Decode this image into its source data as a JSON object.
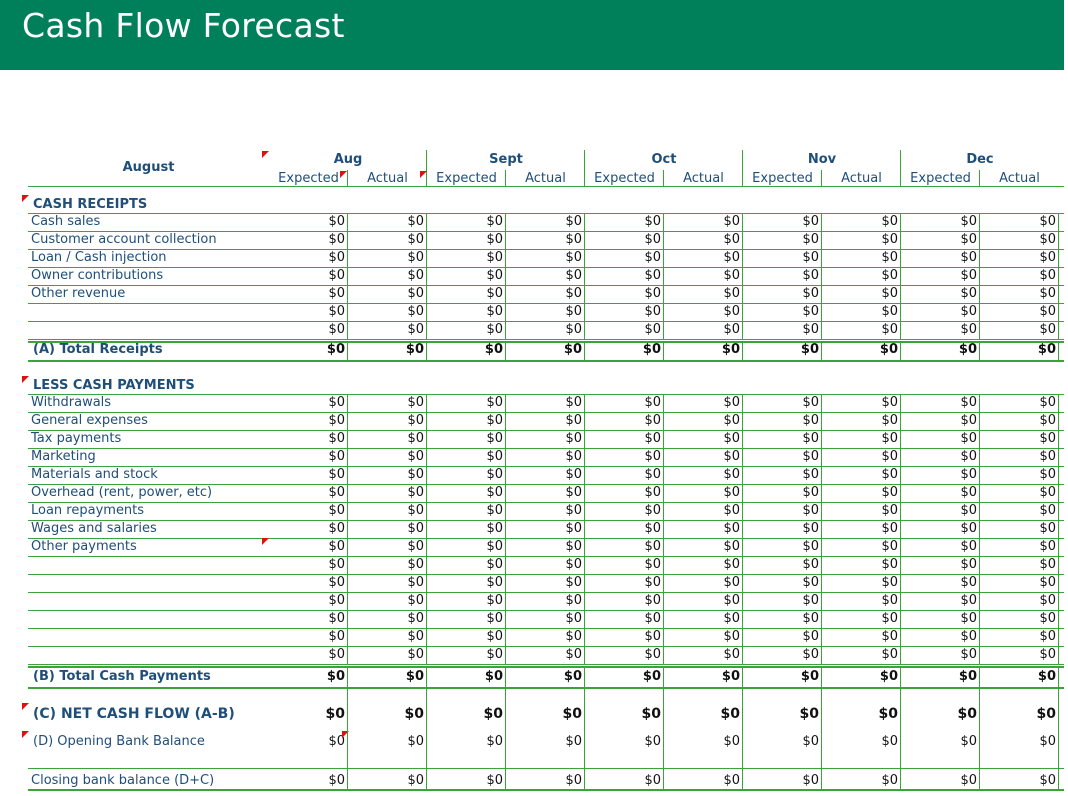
{
  "title": "Cash Flow Forecast",
  "corner_label": "August",
  "months": [
    "Aug",
    "Sept",
    "Oct",
    "Nov",
    "Dec"
  ],
  "sub_headers": [
    "Expected",
    "Actual"
  ],
  "receipts": {
    "heading": "CASH RECEIPTS",
    "rows": [
      "Cash sales",
      "Customer account collection",
      "Loan / Cash injection",
      "Owner contributions",
      "Other revenue",
      "",
      ""
    ],
    "total_label": "(A) Total Receipts"
  },
  "payments": {
    "heading": "LESS CASH PAYMENTS",
    "rows": [
      "Withdrawals",
      "General expenses",
      "Tax payments",
      "Marketing",
      "Materials and stock",
      "Overhead (rent, power, etc)",
      "Loan repayments",
      "Wages and salaries",
      "Other payments",
      "",
      "",
      "",
      "",
      "",
      ""
    ],
    "total_label": "(B) Total Cash Payments"
  },
  "net_flow_label": "(C)  NET CASH FLOW (A-B)",
  "opening_label": "(D) Opening Bank Balance",
  "closing_label": "Closing bank balance (D+C)",
  "cell_value": "$0"
}
